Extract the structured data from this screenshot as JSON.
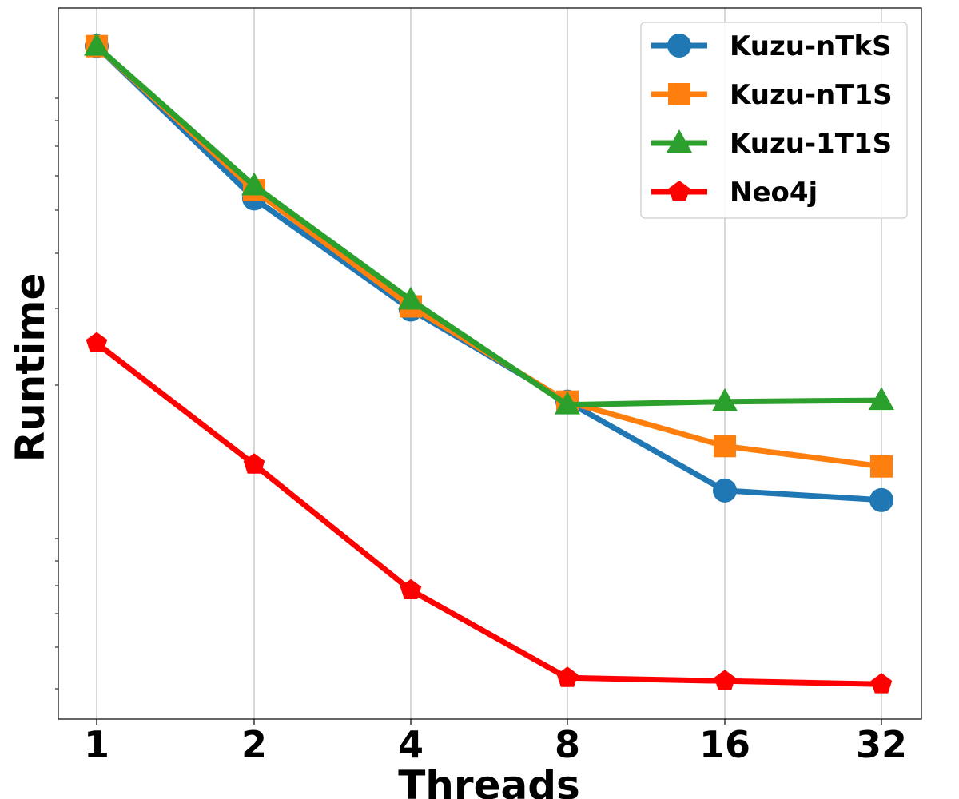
{
  "chart_data": {
    "type": "line",
    "title": "",
    "xlabel": "Threads",
    "ylabel": "Runtime",
    "x": [
      1,
      2,
      4,
      8,
      16,
      32
    ],
    "x_tick_labels": [
      "1",
      "2",
      "4",
      "8",
      "16",
      "32"
    ],
    "y_scale": "log",
    "y_tick_labels_shown": false,
    "ylim": [
      -0.06,
      1.06
    ],
    "grid": "x-only",
    "legend_position": "top-right",
    "series": [
      {
        "name": "Kuzu-nTkS",
        "color": "#1f77b4",
        "marker": "circle",
        "values": [
          1.0,
          0.76,
          0.585,
          0.44,
          0.3,
          0.285
        ]
      },
      {
        "name": "Kuzu-nT1S",
        "color": "#ff7f0e",
        "marker": "square",
        "values": [
          1.0,
          0.773,
          0.59,
          0.44,
          0.37,
          0.338
        ]
      },
      {
        "name": "Kuzu-1T1S",
        "color": "#2ca02c",
        "marker": "triangle",
        "values": [
          1.0,
          0.78,
          0.6,
          0.435,
          0.44,
          0.442
        ]
      },
      {
        "name": "Neo4j",
        "color": "#ff0000",
        "marker": "pentagon",
        "values": [
          0.532,
          0.341,
          0.143,
          0.005,
          0.0,
          -0.005
        ]
      }
    ]
  }
}
